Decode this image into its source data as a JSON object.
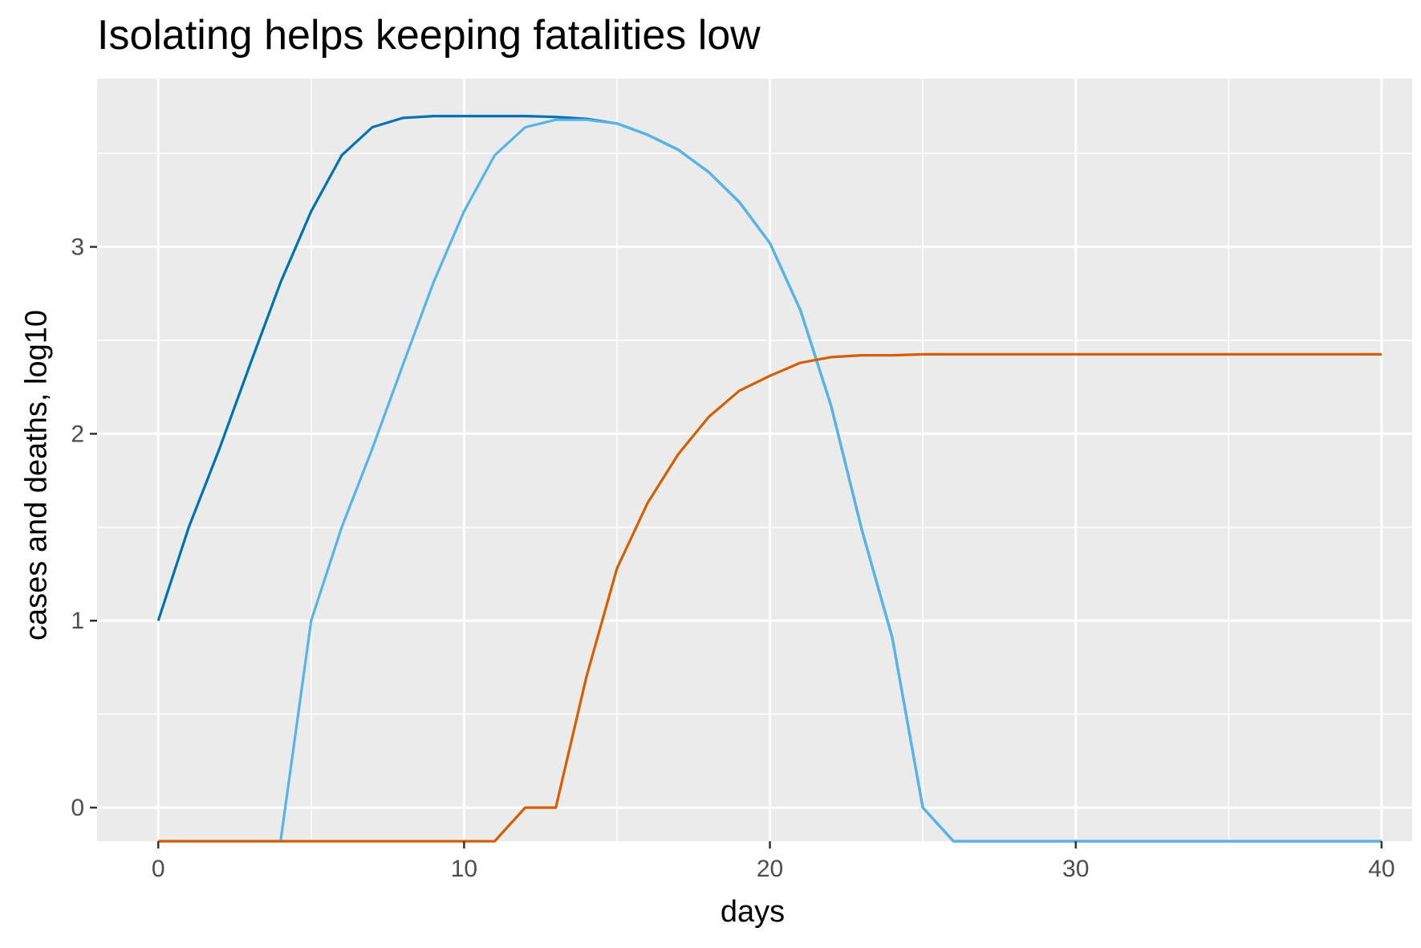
{
  "chart_data": {
    "type": "line",
    "title": "Isolating helps keeping fatalities low",
    "xlabel": "days",
    "ylabel": "cases and deaths, log10",
    "xlim": [
      -2,
      41
    ],
    "ylim": [
      -0.18,
      3.9
    ],
    "x_ticks": [
      0,
      10,
      20,
      30,
      40
    ],
    "y_ticks": [
      0,
      1,
      2,
      3
    ],
    "grid": true,
    "legend": "none",
    "series": [
      {
        "color": "#0072B2",
        "x": [
          0,
          1,
          2,
          3,
          4,
          5,
          6,
          7,
          8,
          9,
          10,
          11,
          12,
          13,
          14,
          15,
          16,
          17,
          18,
          19,
          20,
          21,
          22,
          23,
          24,
          25,
          26,
          27,
          28,
          29,
          30,
          31,
          32,
          33,
          34,
          35,
          36,
          37,
          38,
          39,
          40
        ],
        "values": [
          1.0,
          1.5,
          1.92,
          2.37,
          2.81,
          3.19,
          3.49,
          3.64,
          3.69,
          3.7,
          3.7,
          3.7,
          3.7,
          3.695,
          3.685,
          3.66,
          3.6,
          3.52,
          3.4,
          3.24,
          3.02,
          2.66,
          2.15,
          1.49,
          0.91,
          0.0,
          -0.18,
          -0.18,
          -0.18,
          -0.18,
          -0.18,
          -0.18,
          -0.18,
          -0.18,
          -0.18,
          -0.18,
          -0.18,
          -0.18,
          -0.18,
          -0.18,
          -0.18
        ]
      },
      {
        "color": "#56B4E9",
        "x": [
          0,
          1,
          2,
          3,
          4,
          5,
          6,
          7,
          8,
          9,
          10,
          11,
          12,
          13,
          14,
          15,
          16,
          17,
          18,
          19,
          20,
          21,
          22,
          23,
          24,
          25,
          26,
          27,
          28,
          29,
          30,
          31,
          32,
          33,
          34,
          35,
          36,
          37,
          38,
          39,
          40
        ],
        "values": [
          -0.18,
          -0.18,
          -0.18,
          -0.18,
          -0.18,
          1.0,
          1.5,
          1.92,
          2.37,
          2.81,
          3.19,
          3.49,
          3.64,
          3.68,
          3.68,
          3.66,
          3.6,
          3.52,
          3.4,
          3.24,
          3.02,
          2.66,
          2.15,
          1.49,
          0.91,
          0.0,
          -0.18,
          -0.18,
          -0.18,
          -0.18,
          -0.18,
          -0.18,
          -0.18,
          -0.18,
          -0.18,
          -0.18,
          -0.18,
          -0.18,
          -0.18,
          -0.18,
          -0.18
        ]
      },
      {
        "color": "#D55E00",
        "x": [
          0,
          1,
          2,
          3,
          4,
          5,
          6,
          7,
          8,
          9,
          10,
          11,
          12,
          13,
          14,
          15,
          16,
          17,
          18,
          19,
          20,
          21,
          22,
          23,
          24,
          25,
          26,
          27,
          28,
          29,
          30,
          31,
          32,
          33,
          34,
          35,
          36,
          37,
          38,
          39,
          40
        ],
        "values": [
          -0.18,
          -0.18,
          -0.18,
          -0.18,
          -0.18,
          -0.18,
          -0.18,
          -0.18,
          -0.18,
          -0.18,
          -0.18,
          -0.18,
          0.0,
          0.0,
          0.7,
          1.28,
          1.63,
          1.89,
          2.09,
          2.23,
          2.31,
          2.38,
          2.41,
          2.42,
          2.42,
          2.425,
          2.425,
          2.425,
          2.425,
          2.425,
          2.425,
          2.425,
          2.425,
          2.425,
          2.425,
          2.425,
          2.425,
          2.425,
          2.425,
          2.425,
          2.425
        ]
      }
    ]
  }
}
